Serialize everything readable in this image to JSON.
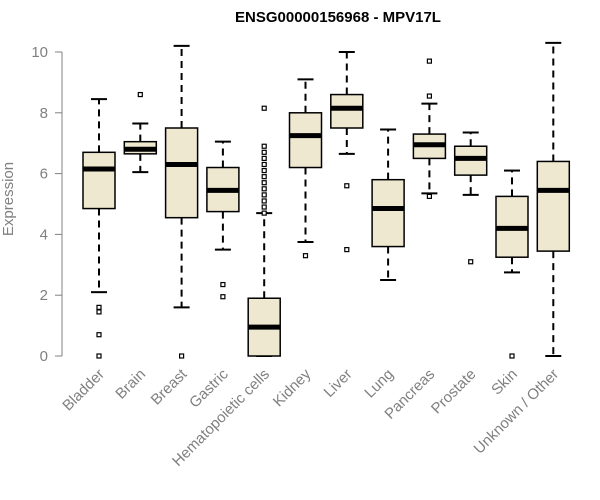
{
  "chart_data": {
    "type": "boxplot",
    "title": "ENSG00000156968 - MPV17L",
    "xlabel": "",
    "ylabel": "Expression",
    "ylim": [
      0,
      10.3
    ],
    "yticks": [
      0,
      2,
      4,
      6,
      8,
      10
    ],
    "box_fill": "#efe8d0",
    "median_color": "#000000",
    "categories": [
      "Bladder",
      "Brain",
      "Breast",
      "Gastric",
      "Hematopoietic cells",
      "Kidney",
      "Liver",
      "Lung",
      "Pancreas",
      "Prostate",
      "Skin",
      "Unknown / Other"
    ],
    "boxes": [
      {
        "name": "Bladder",
        "whisker_low": 2.1,
        "q1": 4.85,
        "median": 6.15,
        "q3": 6.7,
        "whisker_high": 8.45,
        "outliers": [
          0.0,
          0.7,
          1.45,
          1.6
        ]
      },
      {
        "name": "Brain",
        "whisker_low": 6.05,
        "q1": 6.65,
        "median": 6.8,
        "q3": 7.05,
        "whisker_high": 7.65,
        "outliers": [
          8.6
        ]
      },
      {
        "name": "Breast",
        "whisker_low": 1.6,
        "q1": 4.55,
        "median": 6.3,
        "q3": 7.5,
        "whisker_high": 10.2,
        "outliers": [
          0.0
        ]
      },
      {
        "name": "Gastric",
        "whisker_low": 3.5,
        "q1": 4.75,
        "median": 5.45,
        "q3": 6.2,
        "whisker_high": 7.05,
        "outliers": [
          1.95,
          2.35
        ]
      },
      {
        "name": "Hematopoietic cells",
        "whisker_low": 0.0,
        "q1": 0.0,
        "median": 0.95,
        "q3": 1.9,
        "whisker_high": 4.7,
        "outliers": [
          4.7,
          4.9,
          5.1,
          5.3,
          5.5,
          5.7,
          5.9,
          6.1,
          6.3,
          6.5,
          6.7,
          6.9,
          8.15
        ]
      },
      {
        "name": "Kidney",
        "whisker_low": 3.75,
        "q1": 6.2,
        "median": 7.25,
        "q3": 8.0,
        "whisker_high": 9.1,
        "outliers": [
          3.3
        ]
      },
      {
        "name": "Liver",
        "whisker_low": 6.65,
        "q1": 7.5,
        "median": 8.15,
        "q3": 8.6,
        "whisker_high": 10.0,
        "outliers": [
          3.5,
          5.6
        ]
      },
      {
        "name": "Lung",
        "whisker_low": 2.5,
        "q1": 3.6,
        "median": 4.85,
        "q3": 5.8,
        "whisker_high": 7.45,
        "outliers": []
      },
      {
        "name": "Pancreas",
        "whisker_low": 5.35,
        "q1": 6.5,
        "median": 6.95,
        "q3": 7.3,
        "whisker_high": 8.3,
        "outliers": [
          5.25,
          8.55,
          9.7
        ]
      },
      {
        "name": "Prostate",
        "whisker_low": 5.3,
        "q1": 5.95,
        "median": 6.5,
        "q3": 6.9,
        "whisker_high": 7.35,
        "outliers": [
          3.1
        ]
      },
      {
        "name": "Skin",
        "whisker_low": 2.75,
        "q1": 3.25,
        "median": 4.2,
        "q3": 5.25,
        "whisker_high": 6.1,
        "outliers": [
          0.0
        ]
      },
      {
        "name": "Unknown / Other",
        "whisker_low": 0.0,
        "q1": 3.45,
        "median": 5.45,
        "q3": 6.4,
        "whisker_high": 10.3,
        "outliers": []
      }
    ]
  }
}
